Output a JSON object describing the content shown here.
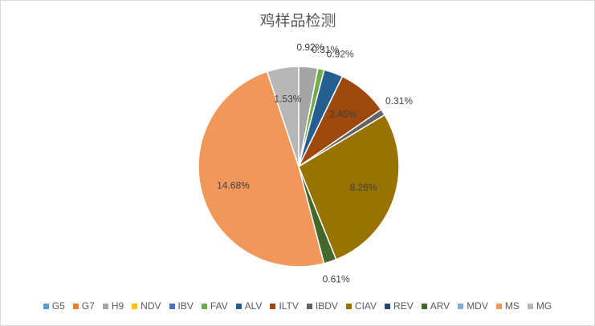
{
  "chart_data": {
    "type": "pie",
    "title": "鸡样品检测",
    "categories": [
      "G5",
      "G7",
      "H9",
      "NDV",
      "IBV",
      "FAV",
      "ALV",
      "ILTV",
      "IBDV",
      "CIAV",
      "REV",
      "ARV",
      "MDV",
      "MS",
      "MG"
    ],
    "values": [
      0,
      0,
      0.92,
      0,
      0,
      0.31,
      0.92,
      2.45,
      0.31,
      8.26,
      0,
      0.61,
      0,
      14.68,
      1.53
    ],
    "value_labels": [
      null,
      null,
      "0.92%",
      null,
      null,
      "0.31%",
      "0.92%",
      "2.45%",
      "0.31%",
      "8.26%",
      null,
      "0.61%",
      null,
      "14.68%",
      "1.53%"
    ],
    "colors": [
      "#5b9bd5",
      "#ed7d31",
      "#a5a5a5",
      "#ffc000",
      "#4472c4",
      "#70ad47",
      "#255e91",
      "#9e480e",
      "#636363",
      "#997300",
      "#264478",
      "#43682b",
      "#7cafdd",
      "#f1975a",
      "#b7b7b7"
    ],
    "legend": "bottom"
  }
}
